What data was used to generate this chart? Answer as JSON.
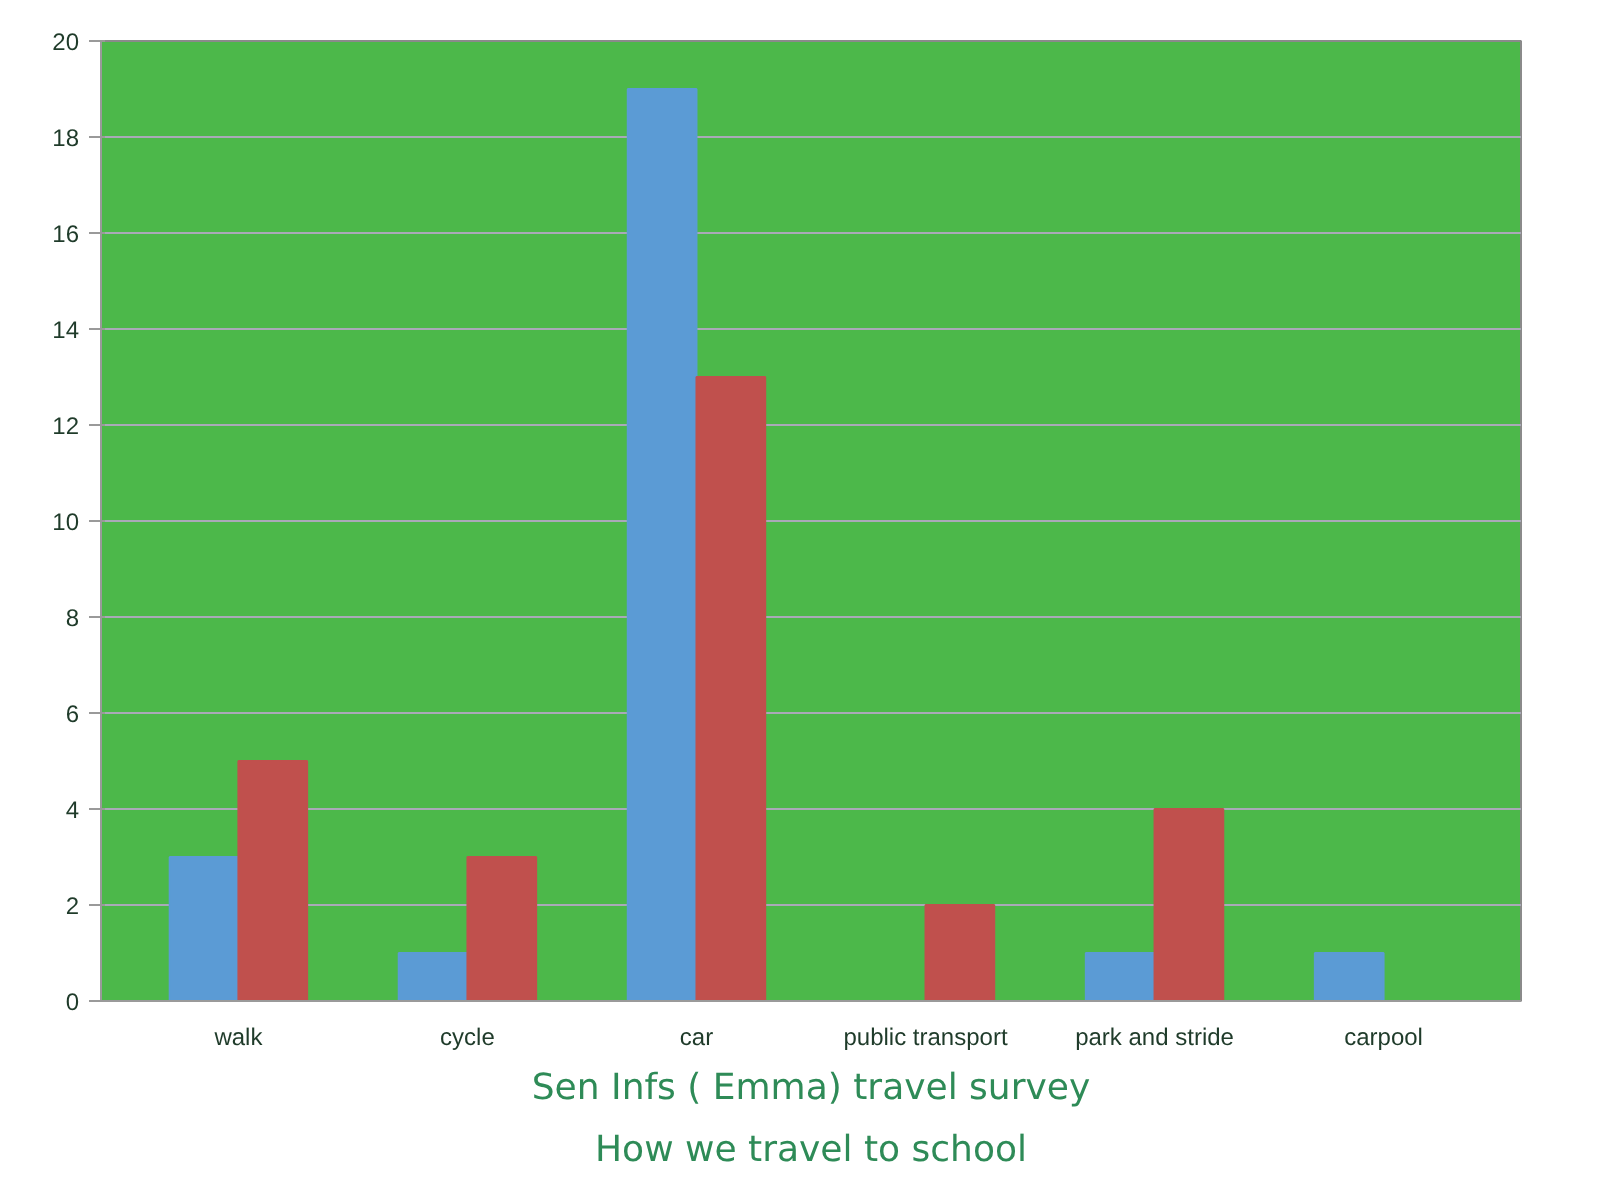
{
  "chart_data": {
    "type": "bar",
    "title": "Sen Infs ( Emma) travel survey",
    "subtitle": "How we travel to school",
    "categories": [
      "walk",
      "cycle",
      "car",
      "public transport",
      "park and stride",
      "carpool"
    ],
    "series": [
      {
        "color": "#5b9bd5",
        "values": [
          3,
          1,
          19,
          0,
          1,
          1
        ]
      },
      {
        "color": "#c0504d",
        "values": [
          5,
          3,
          13,
          2,
          4,
          0
        ]
      }
    ],
    "ylim": [
      0,
      20
    ],
    "yticks": [
      0,
      2,
      4,
      6,
      8,
      10,
      12,
      14,
      16,
      18,
      20
    ],
    "grid": "y"
  }
}
